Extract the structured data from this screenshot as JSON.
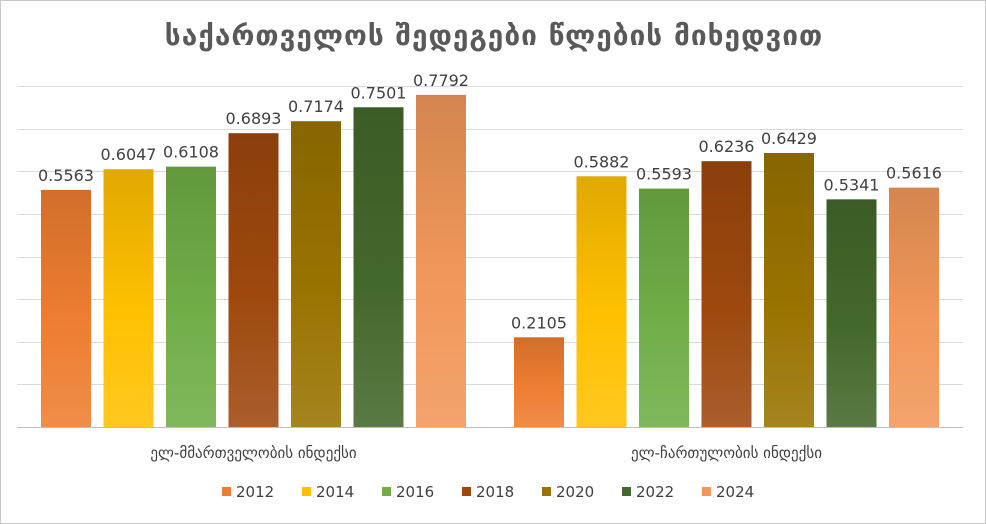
{
  "chart_data": {
    "type": "bar",
    "title": "საქართველოს შედეგები წლების მიხედვით",
    "categories": [
      "ელ-მმართველობის ინდექსი",
      "ელ-ჩართულობის ინდექსი"
    ],
    "series": [
      {
        "name": "2012",
        "values": [
          0.5563,
          0.2105
        ],
        "color": "#ed7d31"
      },
      {
        "name": "2014",
        "values": [
          0.6047,
          0.5882
        ],
        "color": "#ffc000"
      },
      {
        "name": "2016",
        "values": [
          0.6108,
          0.5593
        ],
        "color": "#70ad47"
      },
      {
        "name": "2018",
        "values": [
          0.6893,
          0.6236
        ],
        "color": "#9e480e"
      },
      {
        "name": "2020",
        "values": [
          0.7174,
          0.6429
        ],
        "color": "#997300"
      },
      {
        "name": "2022",
        "values": [
          0.7501,
          0.5341
        ],
        "color": "#43682b"
      },
      {
        "name": "2024",
        "values": [
          0.7792,
          0.5616
        ],
        "color": "#f1975a"
      }
    ],
    "value_labels": [
      [
        "0.5563",
        "0.2105"
      ],
      [
        "0.6047",
        "0.5882"
      ],
      [
        "0.6108",
        "0.5593"
      ],
      [
        "0.6893",
        "0.6236"
      ],
      [
        "0.7174",
        "0.6429"
      ],
      [
        "0.7501",
        "0.5341"
      ],
      [
        "0.7792",
        "0.5616"
      ]
    ],
    "ylim": [
      0,
      0.8
    ],
    "y_tick_step": 0.1,
    "y_axis_labels_visible": false,
    "grid": true,
    "legend": "bottom",
    "bar_style": "gradient"
  }
}
